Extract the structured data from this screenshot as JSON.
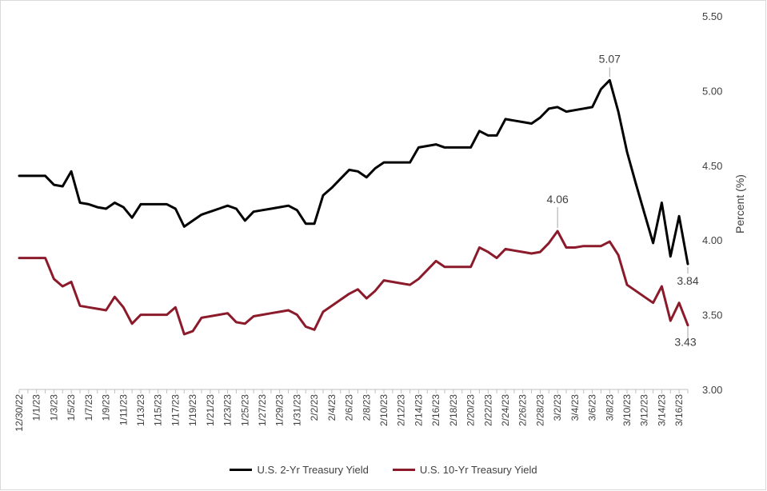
{
  "chart_data": {
    "type": "line",
    "ylabel": "Percent (%)",
    "ylim": [
      3.0,
      5.5
    ],
    "yticks": [
      "3.00",
      "3.50",
      "4.00",
      "4.50",
      "5.00",
      "5.50"
    ],
    "x_tick_labels": [
      "12/30/22",
      "1/1/23",
      "1/3/23",
      "1/5/23",
      "1/7/23",
      "1/9/23",
      "1/11/23",
      "1/13/23",
      "1/15/23",
      "1/17/23",
      "1/19/23",
      "1/21/23",
      "1/23/23",
      "1/25/23",
      "1/27/23",
      "1/29/23",
      "1/31/23",
      "2/2/23",
      "2/4/23",
      "2/6/23",
      "2/8/23",
      "2/10/23",
      "2/12/23",
      "2/14/23",
      "2/16/23",
      "2/18/23",
      "2/20/23",
      "2/22/23",
      "2/24/23",
      "2/26/23",
      "2/28/23",
      "3/2/23",
      "3/4/23",
      "3/6/23",
      "3/8/23",
      "3/10/23",
      "3/12/23",
      "3/14/23",
      "3/16/23"
    ],
    "x": [
      "12/30/22",
      "12/31/22",
      "1/1/23",
      "1/2/23",
      "1/3/23",
      "1/4/23",
      "1/5/23",
      "1/6/23",
      "1/7/23",
      "1/8/23",
      "1/9/23",
      "1/10/23",
      "1/11/23",
      "1/12/23",
      "1/13/23",
      "1/14/23",
      "1/15/23",
      "1/16/23",
      "1/17/23",
      "1/18/23",
      "1/19/23",
      "1/20/23",
      "1/21/23",
      "1/22/23",
      "1/23/23",
      "1/24/23",
      "1/25/23",
      "1/26/23",
      "1/27/23",
      "1/28/23",
      "1/29/23",
      "1/30/23",
      "1/31/23",
      "2/1/23",
      "2/2/23",
      "2/3/23",
      "2/4/23",
      "2/5/23",
      "2/6/23",
      "2/7/23",
      "2/8/23",
      "2/9/23",
      "2/10/23",
      "2/11/23",
      "2/12/23",
      "2/13/23",
      "2/14/23",
      "2/15/23",
      "2/16/23",
      "2/17/23",
      "2/18/23",
      "2/19/23",
      "2/20/23",
      "2/21/23",
      "2/22/23",
      "2/23/23",
      "2/24/23",
      "2/25/23",
      "2/26/23",
      "2/27/23",
      "2/28/23",
      "3/1/23",
      "3/2/23",
      "3/3/23",
      "3/4/23",
      "3/5/23",
      "3/6/23",
      "3/7/23",
      "3/8/23",
      "3/9/23",
      "3/10/23",
      "3/11/23",
      "3/12/23",
      "3/13/23",
      "3/14/23",
      "3/15/23",
      "3/16/23",
      "3/17/23"
    ],
    "series": [
      {
        "name": "U.S. 2-Yr Treasury Yield",
        "color": "#000000",
        "values": [
          4.43,
          4.43,
          4.43,
          4.43,
          4.37,
          4.36,
          4.46,
          4.25,
          4.24,
          4.22,
          4.21,
          4.25,
          4.22,
          4.15,
          4.24,
          4.24,
          4.24,
          4.24,
          4.21,
          4.09,
          4.13,
          4.17,
          4.19,
          4.21,
          4.23,
          4.21,
          4.13,
          4.19,
          4.2,
          4.21,
          4.22,
          4.23,
          4.2,
          4.11,
          4.11,
          4.3,
          4.35,
          4.41,
          4.47,
          4.46,
          4.42,
          4.48,
          4.52,
          4.52,
          4.52,
          4.52,
          4.62,
          4.63,
          4.64,
          4.62,
          4.62,
          4.62,
          4.62,
          4.73,
          4.7,
          4.7,
          4.81,
          4.8,
          4.79,
          4.78,
          4.82,
          4.88,
          4.89,
          4.86,
          4.87,
          4.88,
          4.89,
          5.01,
          5.07,
          4.86,
          4.59,
          4.38,
          4.18,
          3.98,
          4.25,
          3.89,
          4.16,
          3.84
        ]
      },
      {
        "name": "U.S. 10-Yr Treasury Yield",
        "color": "#8b1a2b",
        "values": [
          3.88,
          3.88,
          3.88,
          3.88,
          3.74,
          3.69,
          3.72,
          3.56,
          3.55,
          3.54,
          3.53,
          3.62,
          3.55,
          3.44,
          3.5,
          3.5,
          3.5,
          3.5,
          3.55,
          3.37,
          3.39,
          3.48,
          3.49,
          3.5,
          3.51,
          3.45,
          3.44,
          3.49,
          3.5,
          3.51,
          3.52,
          3.53,
          3.5,
          3.42,
          3.4,
          3.52,
          3.56,
          3.6,
          3.64,
          3.67,
          3.61,
          3.66,
          3.73,
          3.72,
          3.71,
          3.7,
          3.74,
          3.8,
          3.86,
          3.82,
          3.82,
          3.82,
          3.82,
          3.95,
          3.92,
          3.88,
          3.94,
          3.93,
          3.92,
          3.91,
          3.92,
          3.98,
          4.06,
          3.95,
          3.95,
          3.96,
          3.96,
          3.96,
          3.99,
          3.9,
          3.7,
          3.66,
          3.62,
          3.58,
          3.69,
          3.46,
          3.58,
          3.43
        ]
      }
    ],
    "annotations": [
      {
        "label": "5.07",
        "series": 0,
        "x": "3/8/23"
      },
      {
        "label": "4.06",
        "series": 1,
        "x": "3/2/23"
      },
      {
        "label": "3.84",
        "series": 0,
        "x": "3/17/23"
      },
      {
        "label": "3.43",
        "series": 1,
        "x": "3/17/23"
      }
    ],
    "grid": false,
    "legend_position": "bottom"
  }
}
